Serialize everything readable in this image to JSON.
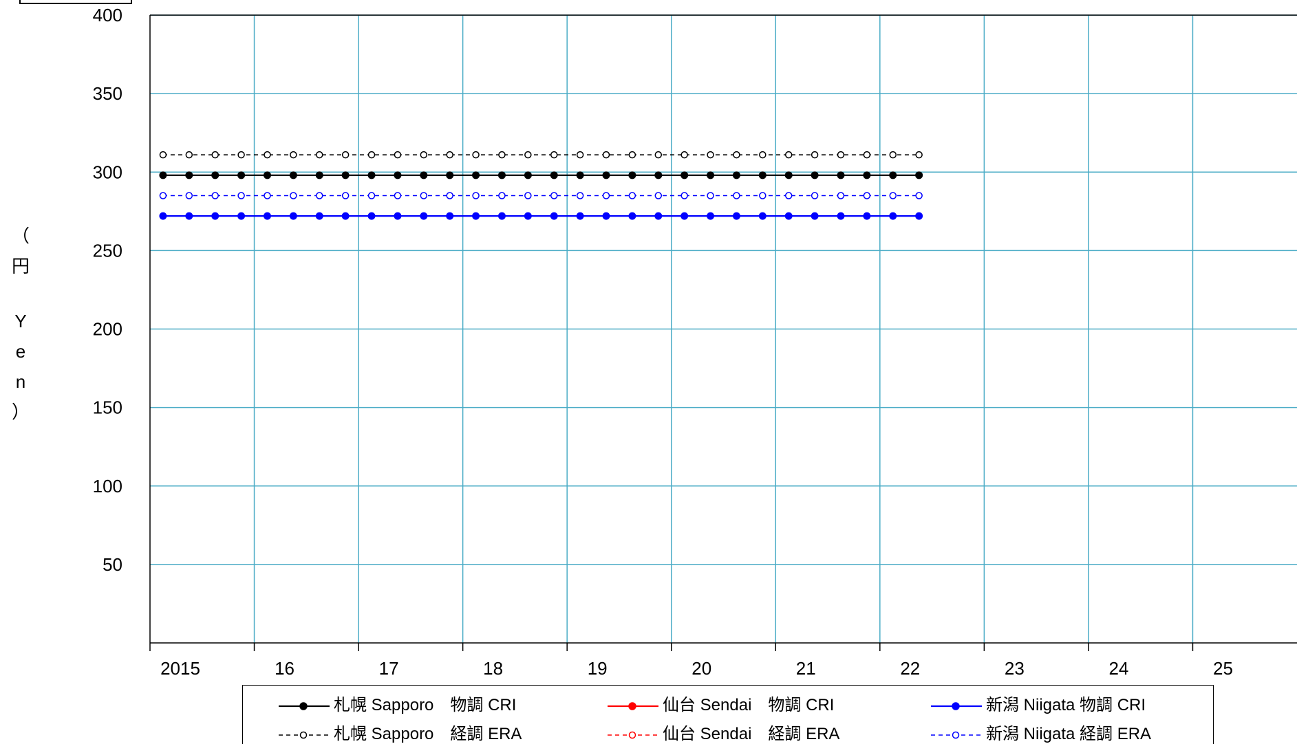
{
  "chart_data": {
    "type": "line",
    "ylabel_chars": [
      "（",
      "円",
      " ",
      "Y",
      "e",
      "n",
      "）"
    ],
    "ylim": [
      0,
      400
    ],
    "yticks": [
      "400",
      "350",
      "300",
      "250",
      "200",
      "150",
      "100",
      "50"
    ],
    "ytick_values": [
      400,
      350,
      300,
      250,
      200,
      150,
      100,
      50
    ],
    "xlim": [
      2015.0,
      2026.0
    ],
    "xticks": [
      "2015",
      "16",
      "17",
      "18",
      "19",
      "20",
      "21",
      "22",
      "23",
      "24",
      "25"
    ],
    "xtick_values": [
      2015,
      2016,
      2017,
      2018,
      2019,
      2020,
      2021,
      2022,
      2023,
      2024,
      2025
    ],
    "x_start": 2015.125,
    "x_end": 2022.375,
    "x_step": 0.25,
    "grid": true,
    "series": [
      {
        "name": "札幌 Sapporo　物調 CRI",
        "color": "#000000",
        "style": "solid",
        "marker": "filled",
        "value": 298
      },
      {
        "name": "仙台 Sendai　物調 CRI",
        "color": "#ff0000",
        "style": "solid",
        "marker": "filled",
        "value": null
      },
      {
        "name": "新潟 Niigata  物調 CRI",
        "color": "#0000ff",
        "style": "solid",
        "marker": "filled",
        "value": 272
      },
      {
        "name": "札幌 Sapporo　経調 ERA",
        "color": "#000000",
        "style": "dashed",
        "marker": "open",
        "value": 311
      },
      {
        "name": "仙台 Sendai　経調 ERA",
        "color": "#ff0000",
        "style": "dashed",
        "marker": "open",
        "value": null
      },
      {
        "name": "新潟 Niigata  経調 ERA",
        "color": "#0000ff",
        "style": "dashed",
        "marker": "open",
        "value": 285
      }
    ],
    "legend_position": "bottom"
  },
  "colors": {
    "grid": "#4bacc6",
    "axis": "#000000"
  }
}
